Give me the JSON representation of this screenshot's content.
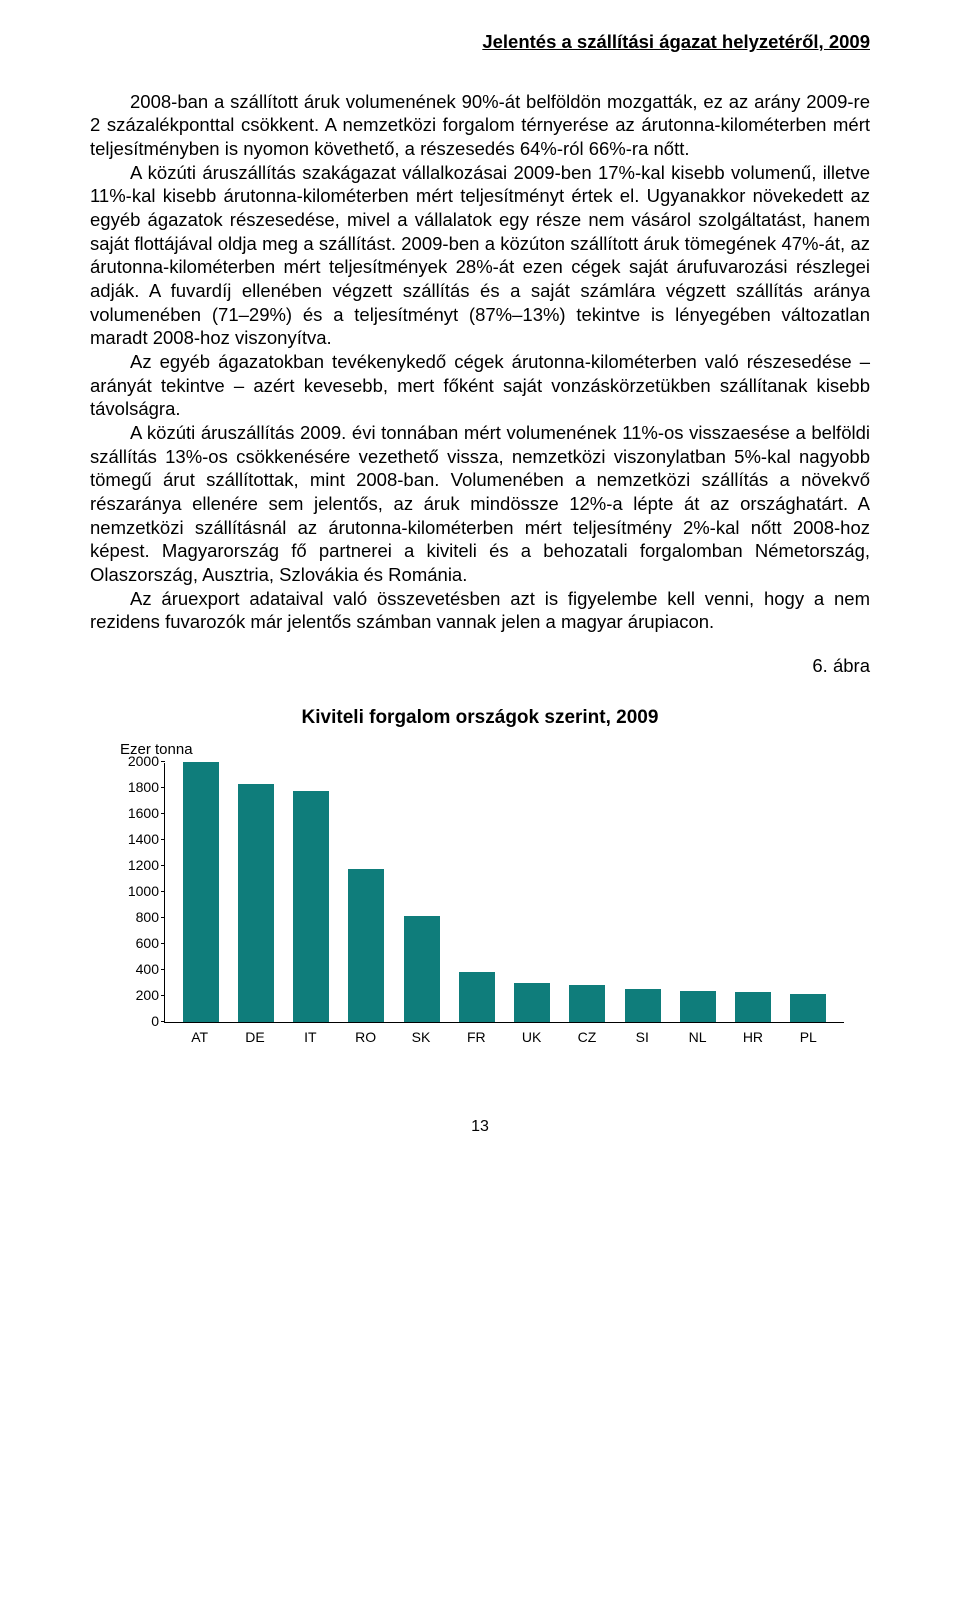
{
  "header": "Jelentés a szállítási ágazat helyzetéről, 2009",
  "paragraphs": [
    "2008-ban a szállított áruk volumenének 90%-át belföldön mozgatták, ez az arány 2009-re 2 százalékponttal csökkent. A nemzetközi forgalom térnyerése az árutonna-kilométerben mért teljesítményben is nyomon követhető, a részesedés 64%-ról 66%-ra nőtt.",
    "A közúti áruszállítás szakágazat vállalkozásai 2009-ben 17%-kal kisebb volumenű, illetve 11%-kal kisebb árutonna-kilométerben mért teljesítményt értek el. Ugyanakkor növekedett az egyéb ágazatok részesedése, mivel a vállalatok egy része nem vásárol szolgáltatást, hanem saját flottájával oldja meg a szállítást. 2009-ben a közúton szállított áruk tömegének 47%-át, az árutonna-kilométerben mért teljesítmények 28%-át ezen cégek saját árufuvarozási részlegei adják. A fuvardíj ellenében végzett szállítás és a saját számlára végzett szállítás aránya volumenében (71–29%) és a teljesítményt (87%–13%) tekintve is lényegében változatlan maradt 2008-hoz viszonyítva.",
    "Az egyéb ágazatokban tevékenykedő cégek árutonna-kilométerben való részesedése – arányát tekintve – azért kevesebb, mert főként saját vonzáskörzetükben szállítanak kisebb távolságra.",
    "A közúti áruszállítás 2009. évi tonnában mért volumenének 11%-os visszaesése a belföldi szállítás 13%-os csökkenésére vezethető vissza, nemzetközi viszonylatban 5%-kal nagyobb tömegű árut szállítottak, mint 2008-ban. Volumenében a nemzetközi szállítás a növekvő részaránya ellenére sem jelentős, az áruk mindössze 12%-a lépte át az országhatárt. A nemzetközi szállításnál az árutonna-kilométerben mért teljesítmény 2%-kal nőtt 2008-hoz képest. Magyarország fő partnerei a kiviteli és a behozatali forgalomban Németország, Olaszország, Ausztria, Szlovákia és Románia.",
    "Az áruexport adataival való összevetésben azt is figyelembe kell venni, hogy a nem rezidens fuvarozók már jelentős számban vannak jelen a magyar árupiacon."
  ],
  "figure_number": "6. ábra",
  "chart": {
    "type": "bar",
    "title": "Kiviteli forgalom országok szerint, 2009",
    "y_unit_label": "Ezer tonna",
    "categories": [
      "AT",
      "DE",
      "IT",
      "RO",
      "SK",
      "FR",
      "UK",
      "CZ",
      "SI",
      "NL",
      "HR",
      "PL"
    ],
    "values": [
      2000,
      1830,
      1780,
      1180,
      820,
      390,
      300,
      290,
      260,
      240,
      230,
      220
    ],
    "bar_color": "#0f7d7b",
    "ylim": [
      0,
      2000
    ],
    "ytick_step": 200,
    "y_ticks": [
      0,
      200,
      400,
      600,
      800,
      1000,
      1200,
      1400,
      1600,
      1800,
      2000
    ],
    "tick_fontsize": 14,
    "axis_color": "#000000",
    "background_color": "#ffffff"
  },
  "page_number": "13"
}
